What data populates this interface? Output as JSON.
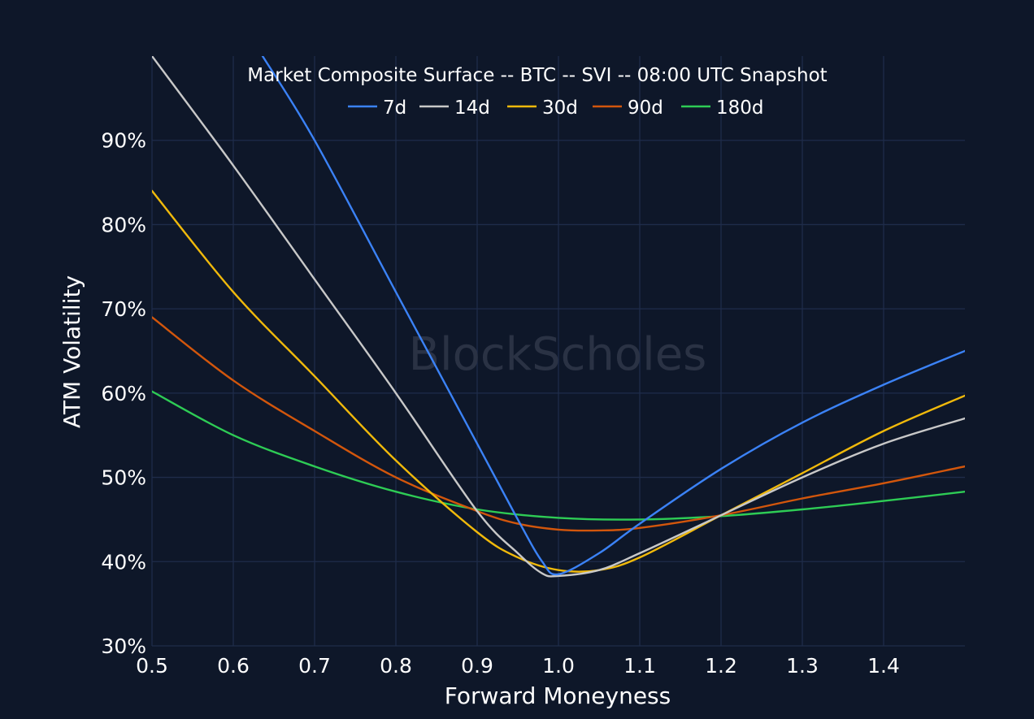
{
  "chart_data": {
    "type": "line",
    "title": "Market Composite Surface -- BTC -- SVI -- 08:00 UTC Snapshot",
    "xlabel": "Forward Moneyness",
    "ylabel": "ATM Volatility",
    "xlim": [
      0.5,
      1.5
    ],
    "ylim": [
      30,
      100
    ],
    "xticks": [
      0.5,
      0.6,
      0.7,
      0.8,
      0.9,
      1.0,
      1.1,
      1.2,
      1.3,
      1.4
    ],
    "xtick_labels": [
      "0.5",
      "0.6",
      "0.7",
      "0.8",
      "0.9",
      "1.0",
      "1.1",
      "1.2",
      "1.3",
      "1.4"
    ],
    "yticks": [
      30,
      40,
      50,
      60,
      70,
      80,
      90
    ],
    "ytick_labels": [
      "30%",
      "40%",
      "50%",
      "60%",
      "70%",
      "80%",
      "90%"
    ],
    "grid": true,
    "legend_position": "top-center",
    "watermark": "BlockScholes",
    "background_color": "#0e1729",
    "series": [
      {
        "name": "7d",
        "color": "#3b82f6",
        "x": [
          0.636,
          0.7,
          0.8,
          0.9,
          0.95,
          0.98,
          1.0,
          1.05,
          1.1,
          1.2,
          1.3,
          1.4,
          1.5
        ],
        "y": [
          100,
          90,
          72,
          54,
          45,
          40,
          38.5,
          41,
          44.5,
          51,
          56.5,
          61,
          65
        ]
      },
      {
        "name": "14d",
        "color": "#c8c8c8",
        "x": [
          0.5,
          0.6,
          0.7,
          0.8,
          0.9,
          0.95,
          0.98,
          1.0,
          1.05,
          1.1,
          1.2,
          1.3,
          1.4,
          1.5
        ],
        "y": [
          100,
          87,
          73.5,
          60,
          46,
          41,
          38.6,
          38.3,
          39,
          41,
          45.5,
          50,
          54,
          57
        ]
      },
      {
        "name": "30d",
        "color": "#f0b90b",
        "x": [
          0.5,
          0.6,
          0.7,
          0.8,
          0.9,
          0.95,
          1.0,
          1.05,
          1.1,
          1.2,
          1.3,
          1.4,
          1.5
        ],
        "y": [
          84,
          72,
          62,
          52,
          43.5,
          40.5,
          39,
          39,
          40.5,
          45.5,
          50.5,
          55.5,
          59.7
        ]
      },
      {
        "name": "90d",
        "color": "#d2560c",
        "x": [
          0.5,
          0.6,
          0.7,
          0.8,
          0.9,
          0.95,
          1.0,
          1.05,
          1.1,
          1.2,
          1.3,
          1.4,
          1.5
        ],
        "y": [
          69,
          61.5,
          55.5,
          50,
          46,
          44.5,
          43.8,
          43.7,
          44,
          45.5,
          47.5,
          49.3,
          51.3
        ]
      },
      {
        "name": "180d",
        "color": "#2ecc55",
        "x": [
          0.5,
          0.6,
          0.7,
          0.8,
          0.9,
          1.0,
          1.1,
          1.2,
          1.3,
          1.4,
          1.5
        ],
        "y": [
          60.2,
          55,
          51.3,
          48.3,
          46.2,
          45.2,
          45,
          45.4,
          46.2,
          47.2,
          48.3
        ]
      }
    ]
  }
}
